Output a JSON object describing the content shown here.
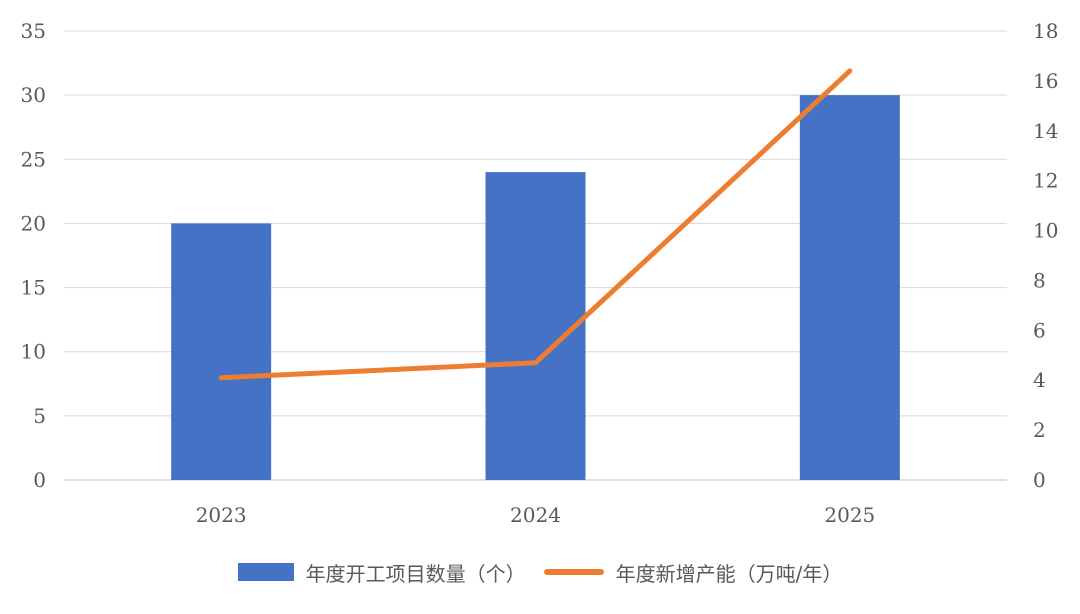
{
  "chart_data": {
    "type": "bar",
    "categories": [
      "2023",
      "2024",
      "2025"
    ],
    "series": [
      {
        "name": "年度开工项目数量（个）",
        "type": "bar",
        "axis": "left",
        "values": [
          20,
          24,
          30
        ],
        "color": "#4472c4"
      },
      {
        "name": "年度新增产能（万吨/年）",
        "type": "line",
        "axis": "right",
        "values": [
          4.1,
          4.7,
          16.4
        ],
        "color": "#ed7d31"
      }
    ],
    "y_left": {
      "lim": [
        0,
        35
      ],
      "ticks": [
        "0",
        "5",
        "10",
        "15",
        "20",
        "25",
        "30",
        "35"
      ]
    },
    "y_right": {
      "lim": [
        0,
        18
      ],
      "ticks": [
        "0",
        "2",
        "4",
        "6",
        "8",
        "10",
        "12",
        "14",
        "16",
        "18"
      ]
    },
    "grid": true,
    "legend_position": "bottom"
  }
}
